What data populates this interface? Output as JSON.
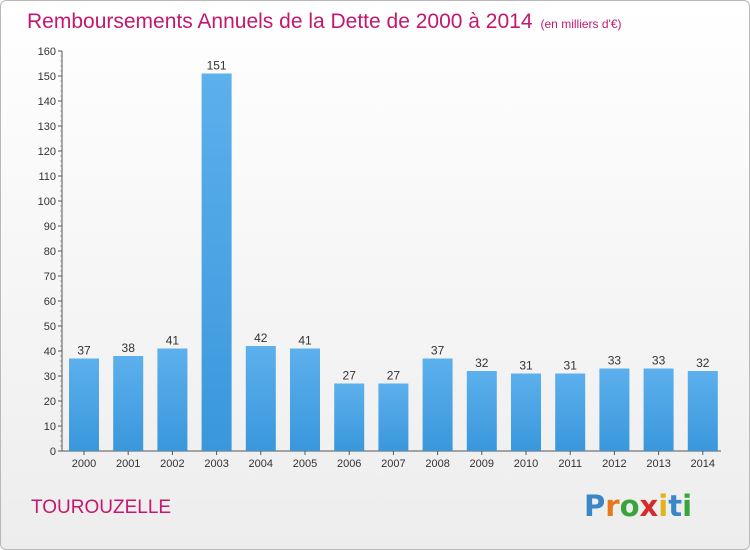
{
  "title": "Remboursements Annuels de la Dette de 2000 à 2014",
  "unit": "(en milliers d'€)",
  "commune": "TOUROUZELLE",
  "logo": "Proxiti",
  "colors": {
    "title": "#c4186e",
    "bar": "#3a97dc",
    "bar_light": "#5cb0ec"
  },
  "chart_data": {
    "type": "bar",
    "categories": [
      "2000",
      "2001",
      "2002",
      "2003",
      "2004",
      "2005",
      "2006",
      "2007",
      "2008",
      "2009",
      "2010",
      "2011",
      "2012",
      "2013",
      "2014"
    ],
    "values": [
      37,
      38,
      41,
      151,
      42,
      41,
      27,
      27,
      37,
      32,
      31,
      31,
      33,
      33,
      32
    ],
    "ylim": [
      0,
      160
    ],
    "yticks": [
      0,
      10,
      20,
      30,
      40,
      50,
      60,
      70,
      80,
      90,
      100,
      110,
      120,
      130,
      140,
      150,
      160
    ],
    "grid": false
  }
}
